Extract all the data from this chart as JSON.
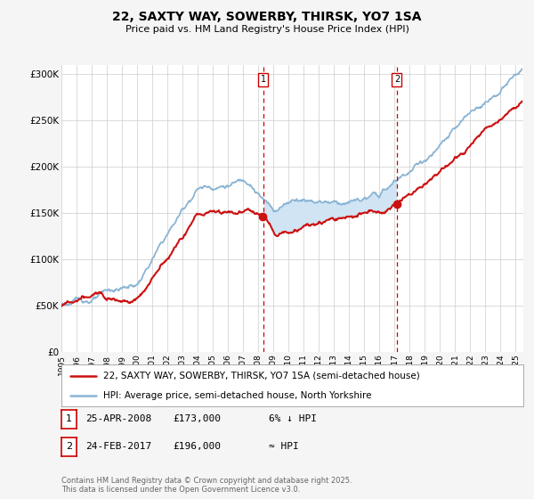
{
  "title": "22, SAXTY WAY, SOWERBY, THIRSK, YO7 1SA",
  "subtitle": "Price paid vs. HM Land Registry's House Price Index (HPI)",
  "ylabel_ticks": [
    "£0",
    "£50K",
    "£100K",
    "£150K",
    "£200K",
    "£250K",
    "£300K"
  ],
  "ylim": [
    0,
    310000
  ],
  "xlim_start": 1995.0,
  "xlim_end": 2025.5,
  "sale1_year": 2008.32,
  "sale1_price": 173000,
  "sale2_year": 2017.15,
  "sale2_price": 196000,
  "hpi_color": "#8ab4d4",
  "price_color": "#cc1111",
  "shade_color": "#d0e4f3",
  "background_color": "#f5f5f5",
  "plot_bg_color": "#ffffff",
  "grid_color": "#cccccc",
  "legend_label_price": "22, SAXTY WAY, SOWERBY, THIRSK, YO7 1SA (semi-detached house)",
  "legend_label_hpi": "HPI: Average price, semi-detached house, North Yorkshire",
  "footer": "Contains HM Land Registry data © Crown copyright and database right 2025.\nThis data is licensed under the Open Government Licence v3.0.",
  "marker_box_color": "#cc0000"
}
